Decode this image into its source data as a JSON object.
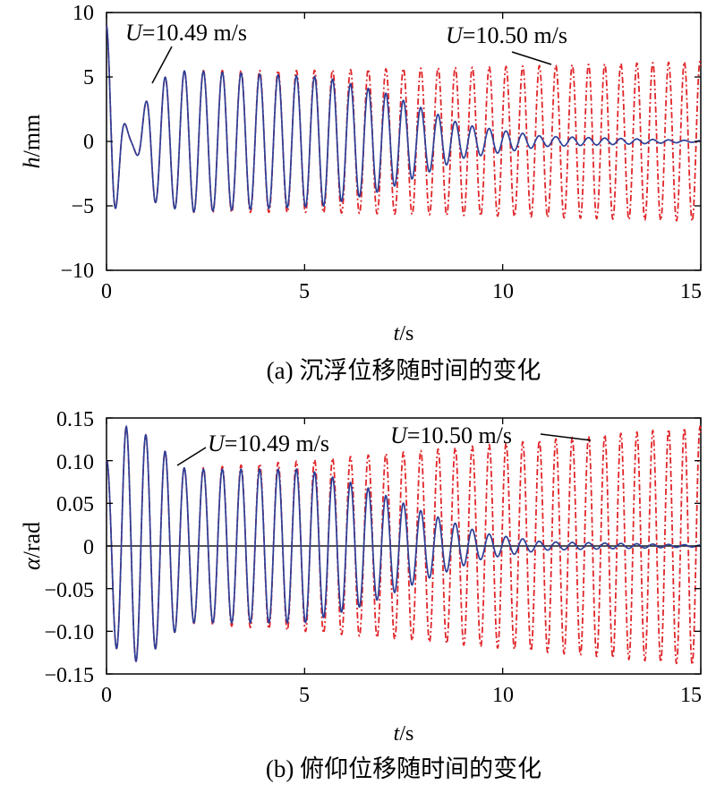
{
  "chart_data": [
    {
      "type": "line",
      "caption": "(a) 沉浮位移随时间的变化",
      "xlabel_var": "t",
      "xlabel_unit": "/s",
      "ylabel_var": "h",
      "ylabel_unit": "/mm",
      "xlim": [
        0,
        15
      ],
      "ylim": [
        -10,
        10
      ],
      "xticks": [
        0,
        5,
        10,
        15
      ],
      "yticks": [
        -10,
        -5,
        0,
        5,
        10
      ],
      "ytick_labels": [
        "−10",
        "−5",
        "0",
        "5",
        "10"
      ],
      "grid": false,
      "series": [
        {
          "name": "U=10.50 m/s",
          "color": "#e0262a",
          "style": "dash-dot",
          "behaviour": "growing",
          "envelope_t": [
            0,
            0.3,
            1.0,
            2.0,
            5.0,
            10.0,
            15.0
          ],
          "envelope_amp": [
            9.0,
            6.8,
            4.5,
            5.5,
            5.5,
            5.8,
            6.2
          ]
        },
        {
          "name": "U=10.49 m/s",
          "color": "#2c3e96",
          "style": "solid",
          "behaviour": "decaying",
          "envelope_t": [
            0,
            0.3,
            1.0,
            2.0,
            5.5,
            7.0,
            9.0,
            11.0,
            15.0
          ],
          "envelope_amp": [
            9.0,
            6.8,
            4.5,
            5.5,
            5.0,
            3.8,
            1.3,
            0.4,
            0.05
          ]
        }
      ],
      "annotations": [
        {
          "var": "U",
          "text": "=10.49 m/s",
          "points_to": [
            1.1,
            4.4
          ]
        },
        {
          "var": "U",
          "text": "=10.50 m/s",
          "points_to": [
            11.3,
            5.8
          ]
        }
      ]
    },
    {
      "type": "line",
      "caption": "(b) 俯仰位移随时间的变化",
      "xlabel_var": "t",
      "xlabel_unit": "/s",
      "ylabel_var": "α",
      "ylabel_unit": "/rad",
      "xlim": [
        0,
        15
      ],
      "ylim": [
        -0.15,
        0.15
      ],
      "xticks": [
        0,
        5,
        10,
        15
      ],
      "yticks": [
        -0.15,
        -0.1,
        -0.05,
        0,
        0.05,
        0.1,
        0.15
      ],
      "ytick_labels": [
        "−0.15",
        "−0.10",
        "−0.05",
        "0",
        "0.05",
        "0.10",
        "0.15"
      ],
      "grid": false,
      "series": [
        {
          "name": "U=10.50 m/s",
          "color": "#e0262a",
          "style": "dash-dot",
          "behaviour": "growing",
          "envelope_t": [
            0,
            0.5,
            1.0,
            2.0,
            5.0,
            10.0,
            15.0
          ],
          "envelope_amp": [
            0.1,
            0.14,
            0.13,
            0.09,
            0.1,
            0.12,
            0.14
          ]
        },
        {
          "name": "U=10.49 m/s",
          "color": "#2c3e96",
          "style": "solid",
          "behaviour": "decaying",
          "envelope_t": [
            0,
            0.5,
            1.0,
            2.0,
            5.0,
            6.5,
            8.0,
            9.5,
            11.0,
            15.0
          ],
          "envelope_amp": [
            0.1,
            0.14,
            0.13,
            0.09,
            0.09,
            0.07,
            0.04,
            0.015,
            0.005,
            0.001
          ]
        }
      ],
      "annotations": [
        {
          "var": "U",
          "text": "=10.49 m/s",
          "points_to": [
            1.75,
            0.095
          ]
        },
        {
          "var": "U",
          "text": "=10.50 m/s",
          "points_to": [
            12.4,
            0.12
          ]
        }
      ]
    }
  ]
}
